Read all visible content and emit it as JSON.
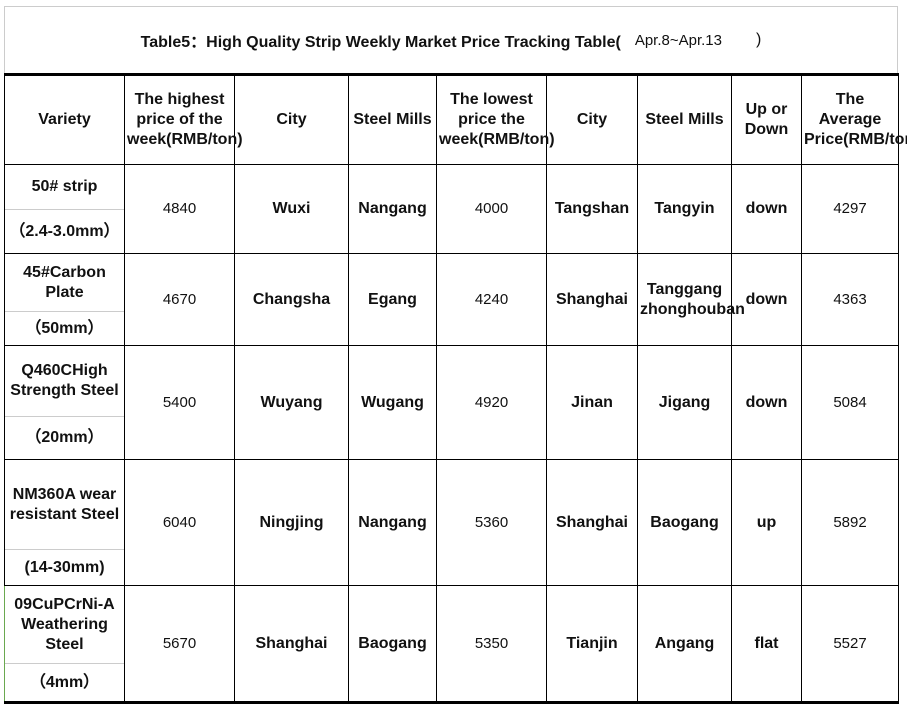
{
  "title": {
    "text": "Table5：High Quality Strip Weekly Market Price Tracking Table(",
    "dates": "Apr.8~Apr.13",
    "close": ")"
  },
  "headers": [
    "Variety",
    "The highest price of the week(RMB/ton)",
    "City",
    "Steel Mills",
    "The lowest price the week(RMB/ton)",
    "City",
    "Steel Mills",
    "Up or Down",
    "The Average Price(RMB/ton)"
  ],
  "rows": [
    {
      "variety": "50# strip",
      "spec": "（2.4-3.0mm）",
      "high": "4840",
      "high_city": "Wuxi",
      "high_mill": "Nangang",
      "low": "4000",
      "low_city": "Tangshan",
      "low_mill": "Tangyin",
      "trend": "down",
      "avg": "4297"
    },
    {
      "variety": "45#Carbon Plate",
      "spec": "（50mm）",
      "high": "4670",
      "high_city": "Changsha",
      "high_mill": "Egang",
      "low": "4240",
      "low_city": "Shanghai",
      "low_mill": "Tanggang zhonghouban",
      "trend": "down",
      "avg": "4363"
    },
    {
      "variety": "Q460CHigh Strength Steel",
      "spec": "（20mm）",
      "high": "5400",
      "high_city": "Wuyang",
      "high_mill": "Wugang",
      "low": "4920",
      "low_city": "Jinan",
      "low_mill": "Jigang",
      "trend": "down",
      "avg": "5084"
    },
    {
      "variety": "NM360A wear resistant Steel",
      "spec": "(14-30mm)",
      "high": "6040",
      "high_city": "Ningjing",
      "high_mill": "Nangang",
      "low": "5360",
      "low_city": "Shanghai",
      "low_mill": "Baogang",
      "trend": "up",
      "avg": "5892"
    },
    {
      "variety": "09CuPCrNi-A Weathering Steel",
      "spec": "（4mm）",
      "high": "5670",
      "high_city": "Shanghai",
      "high_mill": "Baogang",
      "low": "5350",
      "low_city": "Tianjin",
      "low_mill": "Angang",
      "trend": "flat",
      "avg": "5527"
    }
  ]
}
